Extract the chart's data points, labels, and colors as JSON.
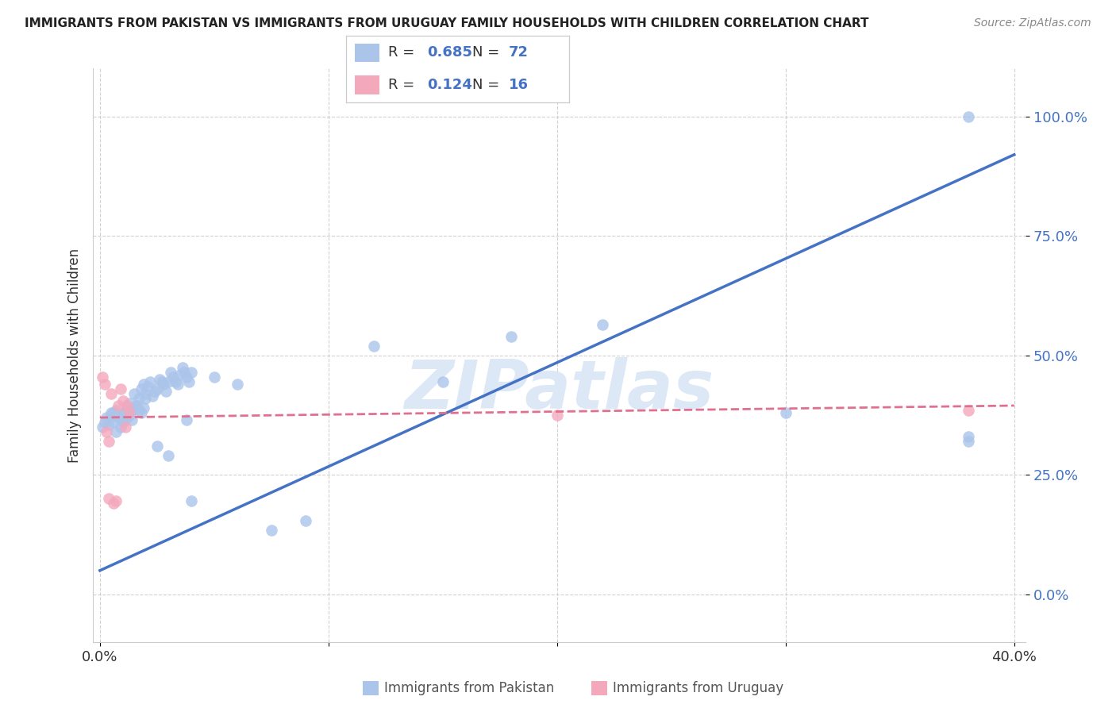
{
  "title": "IMMIGRANTS FROM PAKISTAN VS IMMIGRANTS FROM URUGUAY FAMILY HOUSEHOLDS WITH CHILDREN CORRELATION CHART",
  "source": "Source: ZipAtlas.com",
  "ylabel": "Family Households with Children",
  "xlim_min": 0.0,
  "xlim_max": 0.4,
  "ylim_min": -0.1,
  "ylim_max": 1.1,
  "ytick_vals": [
    0.0,
    0.25,
    0.5,
    0.75,
    1.0
  ],
  "ytick_labels": [
    "0.0%",
    "25.0%",
    "50.0%",
    "75.0%",
    "100.0%"
  ],
  "xtick_vals": [
    0.0,
    0.1,
    0.2,
    0.3,
    0.4
  ],
  "xtick_labels": [
    "0.0%",
    "",
    "",
    "",
    "40.0%"
  ],
  "pakistan_R": 0.685,
  "pakistan_N": 72,
  "uruguay_R": 0.124,
  "uruguay_N": 16,
  "pakistan_dot_color": "#aac4ea",
  "pakistan_line_color": "#4472c4",
  "uruguay_dot_color": "#f4a8bc",
  "uruguay_line_color": "#e07090",
  "grid_color": "#cccccc",
  "background_color": "#ffffff",
  "watermark_text": "ZIPatlas",
  "watermark_color": "#dce8f5",
  "title_color": "#222222",
  "ylabel_color": "#333333",
  "yticklabel_color": "#4472c4",
  "source_color": "#888888",
  "bottom_label_color": "#555555",
  "legend_R_color": "#4472c4",
  "legend_text_color": "#333333",
  "pakistan_x": [
    0.001,
    0.002,
    0.003,
    0.004,
    0.005,
    0.006,
    0.007,
    0.008,
    0.009,
    0.01,
    0.011,
    0.012,
    0.013,
    0.014,
    0.015,
    0.016,
    0.017,
    0.018,
    0.019,
    0.02,
    0.021,
    0.022,
    0.023,
    0.024,
    0.025,
    0.026,
    0.027,
    0.028,
    0.029,
    0.03,
    0.031,
    0.032,
    0.033,
    0.034,
    0.035,
    0.036,
    0.037,
    0.038,
    0.039,
    0.04,
    0.005,
    0.006,
    0.007,
    0.008,
    0.009,
    0.01,
    0.011,
    0.012,
    0.013,
    0.014,
    0.015,
    0.016,
    0.017,
    0.018,
    0.019,
    0.02,
    0.025,
    0.03,
    0.038,
    0.04,
    0.05,
    0.06,
    0.075,
    0.09,
    0.12,
    0.15,
    0.18,
    0.22,
    0.3,
    0.38,
    0.38,
    0.38
  ],
  "pakistan_y": [
    0.35,
    0.36,
    0.37,
    0.355,
    0.38,
    0.36,
    0.34,
    0.37,
    0.35,
    0.36,
    0.38,
    0.39,
    0.4,
    0.385,
    0.42,
    0.395,
    0.41,
    0.43,
    0.44,
    0.42,
    0.435,
    0.445,
    0.415,
    0.425,
    0.43,
    0.45,
    0.445,
    0.44,
    0.425,
    0.445,
    0.465,
    0.455,
    0.445,
    0.44,
    0.46,
    0.475,
    0.465,
    0.455,
    0.445,
    0.465,
    0.375,
    0.38,
    0.385,
    0.375,
    0.37,
    0.365,
    0.38,
    0.37,
    0.375,
    0.365,
    0.39,
    0.395,
    0.385,
    0.38,
    0.39,
    0.41,
    0.31,
    0.29,
    0.365,
    0.195,
    0.455,
    0.44,
    0.135,
    0.155,
    0.52,
    0.445,
    0.54,
    0.565,
    0.38,
    0.33,
    1.0,
    0.32
  ],
  "uruguay_x": [
    0.001,
    0.002,
    0.003,
    0.004,
    0.005,
    0.006,
    0.007,
    0.008,
    0.009,
    0.01,
    0.011,
    0.012,
    0.013,
    0.38,
    0.2,
    0.004
  ],
  "uruguay_y": [
    0.455,
    0.44,
    0.34,
    0.32,
    0.42,
    0.19,
    0.195,
    0.395,
    0.43,
    0.405,
    0.35,
    0.395,
    0.38,
    0.385,
    0.375,
    0.2
  ]
}
